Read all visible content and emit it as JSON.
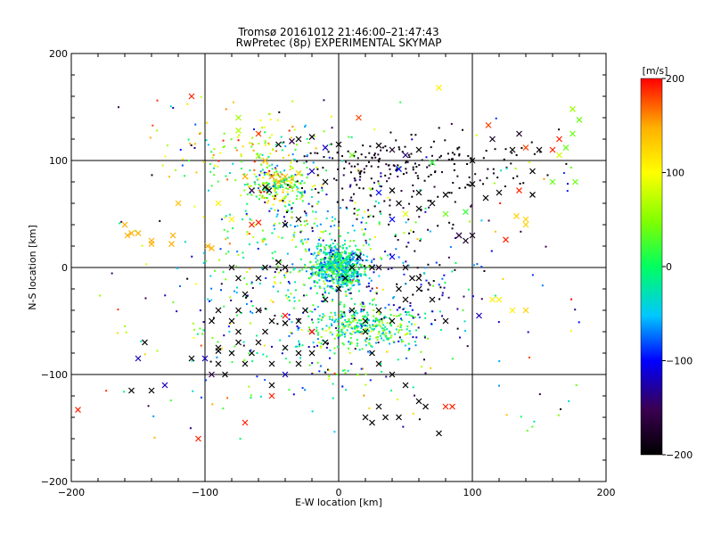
{
  "chart_data": {
    "type": "scatter",
    "title": "Tromsø 20161012 21:46:00–21:47:43",
    "subtitle": "RwPretec (8p) EXPERIMENTAL SKYMAP",
    "xlabel": "E-W location [km]",
    "ylabel": "N-S location [km]",
    "xlim": [
      -200,
      200
    ],
    "ylim": [
      -200,
      200
    ],
    "xticks": [
      -200,
      -100,
      0,
      100,
      200
    ],
    "yticks": [
      -200,
      -100,
      0,
      100,
      200
    ],
    "x_tick_labels": [
      "−200",
      "−100",
      "0",
      "100",
      "200"
    ],
    "y_tick_labels": [
      "−200",
      "−100",
      "0",
      "100",
      "200"
    ],
    "grid_lines": [
      -100,
      0,
      100
    ],
    "colorbar": {
      "label": "[m/s]",
      "range": [
        -200,
        200
      ],
      "ticks": [
        200,
        100,
        0,
        -100,
        -200
      ],
      "tick_labels": [
        "200",
        "100",
        "0",
        "−100",
        "−200"
      ],
      "colormap": [
        "#000000",
        "#3a0050",
        "#0000ff",
        "#00c8ff",
        "#00ff60",
        "#d4ff00",
        "#ffb000",
        "#ff0000"
      ]
    },
    "series": [
      {
        "marker": "x",
        "points": [
          [
            -110,
            160,
            190
          ],
          [
            75,
            168,
            110
          ],
          [
            -75,
            140,
            60
          ],
          [
            -75,
            128,
            70
          ],
          [
            -60,
            125,
            185
          ],
          [
            15,
            140,
            180
          ],
          [
            -60,
            104,
            60
          ],
          [
            -55,
            100,
            140
          ],
          [
            -45,
            115,
            -190
          ],
          [
            -35,
            118,
            -160
          ],
          [
            -30,
            120,
            -200
          ],
          [
            -20,
            122,
            -180
          ],
          [
            -10,
            112,
            -120
          ],
          [
            0,
            115,
            -200
          ],
          [
            10,
            105,
            40
          ],
          [
            30,
            114,
            -200
          ],
          [
            40,
            110,
            -180
          ],
          [
            50,
            105,
            -140
          ],
          [
            60,
            110,
            -200
          ],
          [
            45,
            92,
            -100
          ],
          [
            70,
            98,
            20
          ],
          [
            100,
            100,
            -200
          ],
          [
            115,
            120,
            -180
          ],
          [
            130,
            110,
            -200
          ],
          [
            135,
            125,
            -180
          ],
          [
            140,
            112,
            180
          ],
          [
            112,
            133,
            180
          ],
          [
            175,
            148,
            60
          ],
          [
            180,
            138,
            40
          ],
          [
            175,
            125,
            40
          ],
          [
            170,
            112,
            40
          ],
          [
            165,
            105,
            80
          ],
          [
            160,
            80,
            40
          ],
          [
            177,
            80,
            40
          ],
          [
            150,
            110,
            -200
          ],
          [
            145,
            90,
            -200
          ],
          [
            160,
            110,
            190
          ],
          [
            165,
            120,
            190
          ],
          [
            -120,
            60,
            140
          ],
          [
            -70,
            85,
            150
          ],
          [
            -50,
            85,
            160
          ],
          [
            -45,
            80,
            150
          ],
          [
            -40,
            85,
            140
          ],
          [
            -35,
            83,
            120
          ],
          [
            -30,
            88,
            130
          ],
          [
            -55,
            75,
            -200
          ],
          [
            -52,
            72,
            -190
          ],
          [
            -20,
            90,
            -120
          ],
          [
            -10,
            80,
            -200
          ],
          [
            30,
            70,
            -100
          ],
          [
            40,
            72,
            -200
          ],
          [
            45,
            60,
            -200
          ],
          [
            60,
            70,
            -200
          ],
          [
            70,
            60,
            -200
          ],
          [
            80,
            68,
            -200
          ],
          [
            100,
            78,
            -200
          ],
          [
            110,
            65,
            -200
          ],
          [
            120,
            70,
            -200
          ],
          [
            135,
            72,
            190
          ],
          [
            145,
            68,
            -200
          ],
          [
            40,
            45,
            -100
          ],
          [
            50,
            50,
            90
          ],
          [
            60,
            55,
            -200
          ],
          [
            80,
            50,
            40
          ],
          [
            95,
            52,
            20
          ],
          [
            -65,
            72,
            -160
          ],
          [
            -80,
            45,
            110
          ],
          [
            -90,
            60,
            110
          ],
          [
            -65,
            40,
            190
          ],
          [
            -60,
            42,
            190
          ],
          [
            -40,
            40,
            -200
          ],
          [
            -30,
            45,
            -200
          ],
          [
            -160,
            40,
            150
          ],
          [
            -155,
            32,
            150
          ],
          [
            -150,
            32,
            150
          ],
          [
            -140,
            25,
            150
          ],
          [
            -140,
            22,
            150
          ],
          [
            -125,
            22,
            150
          ],
          [
            -124,
            30,
            150
          ],
          [
            -98,
            20,
            150
          ],
          [
            -95,
            18,
            150
          ],
          [
            -158,
            30,
            150
          ],
          [
            90,
            30,
            -200
          ],
          [
            95,
            25,
            -180
          ],
          [
            90,
            30,
            -160
          ],
          [
            100,
            30,
            -180
          ],
          [
            125,
            26,
            190
          ],
          [
            140,
            40,
            130
          ],
          [
            133,
            48,
            130
          ],
          [
            140,
            45,
            130
          ],
          [
            115,
            -30,
            110
          ],
          [
            120,
            -30,
            110
          ],
          [
            140,
            -40,
            130
          ],
          [
            130,
            -40,
            110
          ],
          [
            105,
            -45,
            -120
          ],
          [
            -80,
            0,
            -200
          ],
          [
            -75,
            -10,
            -200
          ],
          [
            -60,
            -10,
            -200
          ],
          [
            -45,
            5,
            -200
          ],
          [
            -55,
            0,
            -200
          ],
          [
            -40,
            0,
            -200
          ],
          [
            -70,
            -25,
            -200
          ],
          [
            -75,
            -40,
            -200
          ],
          [
            -90,
            -40,
            -200
          ],
          [
            -95,
            -50,
            -200
          ],
          [
            -80,
            -50,
            -200
          ],
          [
            -60,
            -40,
            -200
          ],
          [
            -40,
            -45,
            200
          ],
          [
            -50,
            -50,
            -200
          ],
          [
            -55,
            -60,
            -200
          ],
          [
            -60,
            -70,
            -200
          ],
          [
            -75,
            -70,
            -200
          ],
          [
            -80,
            -80,
            -200
          ],
          [
            -90,
            -75,
            -200
          ],
          [
            -90,
            -90,
            -200
          ],
          [
            -100,
            -85,
            -120
          ],
          [
            -95,
            -100,
            -150
          ],
          [
            -85,
            -100,
            -200
          ],
          [
            -70,
            -90,
            -200
          ],
          [
            -75,
            -60,
            -200
          ],
          [
            -65,
            -80,
            -200
          ],
          [
            -50,
            -90,
            -200
          ],
          [
            -40,
            -100,
            -120
          ],
          [
            -30,
            -90,
            -200
          ],
          [
            -20,
            -80,
            -200
          ],
          [
            -10,
            -70,
            -200
          ],
          [
            -20,
            -60,
            -200
          ],
          [
            -30,
            -50,
            -200
          ],
          [
            -25,
            -40,
            -200
          ],
          [
            -10,
            -30,
            -200
          ],
          [
            20,
            -50,
            -200
          ],
          [
            30,
            -40,
            -200
          ],
          [
            40,
            -50,
            -200
          ],
          [
            50,
            -30,
            -200
          ],
          [
            60,
            -10,
            -200
          ],
          [
            50,
            0,
            -200
          ],
          [
            40,
            10,
            -100
          ],
          [
            30,
            0,
            -180
          ],
          [
            25,
            0,
            -200
          ],
          [
            15,
            10,
            -200
          ],
          [
            10,
            0,
            -200
          ],
          [
            5,
            -10,
            -200
          ],
          [
            0,
            -20,
            -200
          ],
          [
            10,
            -40,
            -200
          ],
          [
            20,
            -60,
            -200
          ],
          [
            25,
            -80,
            -200
          ],
          [
            30,
            -90,
            -200
          ],
          [
            40,
            -100,
            -200
          ],
          [
            50,
            -110,
            -200
          ],
          [
            30,
            -130,
            -200
          ],
          [
            20,
            -140,
            -200
          ],
          [
            25,
            -145,
            -200
          ],
          [
            35,
            -140,
            -200
          ],
          [
            45,
            -140,
            -200
          ],
          [
            60,
            -125,
            -200
          ],
          [
            65,
            -130,
            -200
          ],
          [
            80,
            -130,
            190
          ],
          [
            85,
            -130,
            190
          ],
          [
            75,
            -155,
            -200
          ],
          [
            -145,
            -70,
            -200
          ],
          [
            -150,
            -85,
            -120
          ],
          [
            -130,
            -110,
            -120
          ],
          [
            -140,
            -115,
            -200
          ],
          [
            -155,
            -115,
            -200
          ],
          [
            -195,
            -133,
            190
          ],
          [
            -105,
            -160,
            190
          ],
          [
            -50,
            -120,
            190
          ],
          [
            -50,
            -110,
            -200
          ],
          [
            -70,
            -145,
            190
          ],
          [
            -20,
            -60,
            200
          ],
          [
            -30,
            -80,
            -200
          ],
          [
            -40,
            -75,
            -200
          ],
          [
            -90,
            -78,
            -200
          ],
          [
            -110,
            -85,
            -200
          ],
          [
            -40,
            -52,
            -200
          ],
          [
            60,
            -20,
            -200
          ],
          [
            55,
            -10,
            -200
          ],
          [
            45,
            -20,
            -200
          ],
          [
            70,
            -30,
            -200
          ],
          [
            80,
            -50,
            -200
          ]
        ]
      },
      {
        "marker": "dot",
        "generated_from": "dense dot clusters; color = velocity [m/s]"
      }
    ]
  }
}
